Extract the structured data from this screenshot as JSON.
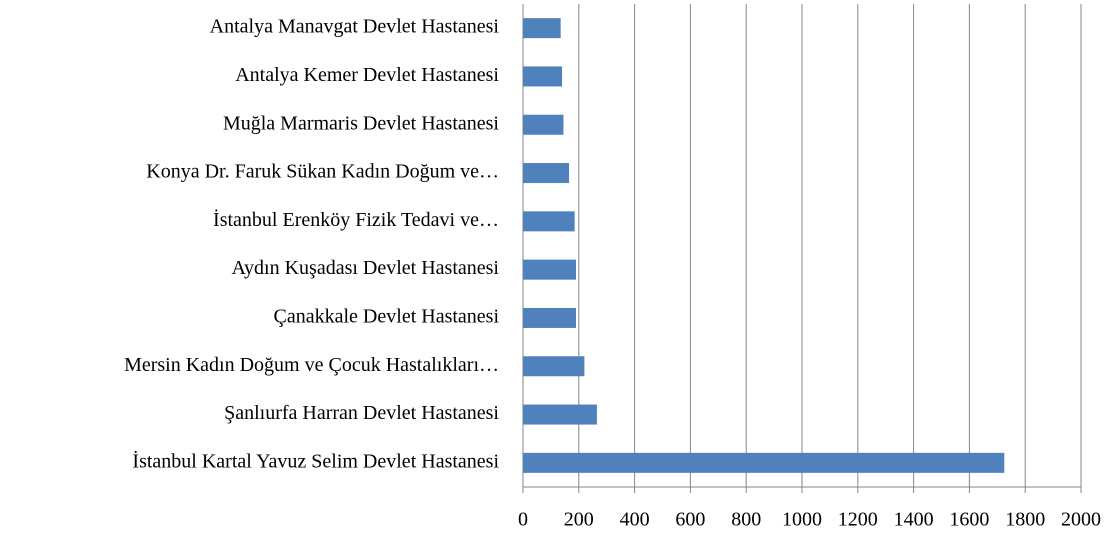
{
  "chart_data": {
    "type": "barh",
    "categories": [
      "Antalya Manavgat Devlet Hastanesi",
      "Antalya Kemer Devlet Hastanesi",
      "Muğla Marmaris Devlet Hastanesi",
      "Konya Dr. Faruk Sükan Kadın Doğum ve…",
      "İstanbul Erenköy Fizik Tedavi ve…",
      "Aydın Kuşadası Devlet Hastanesi",
      "Çanakkale Devlet Hastanesi",
      "Mersin Kadın Doğum ve Çocuk Hastalıkları…",
      "Şanlıurfa Harran Devlet Hastanesi",
      "İstanbul Kartal Yavuz Selim Devlet Hastanesi"
    ],
    "values": [
      135,
      140,
      145,
      165,
      185,
      190,
      190,
      220,
      265,
      1725
    ],
    "color": "#4f81bd",
    "xlim": [
      0,
      2000
    ],
    "xticks": [
      0,
      200,
      400,
      600,
      800,
      1000,
      1200,
      1400,
      1600,
      1800,
      2000
    ],
    "grid": true
  }
}
